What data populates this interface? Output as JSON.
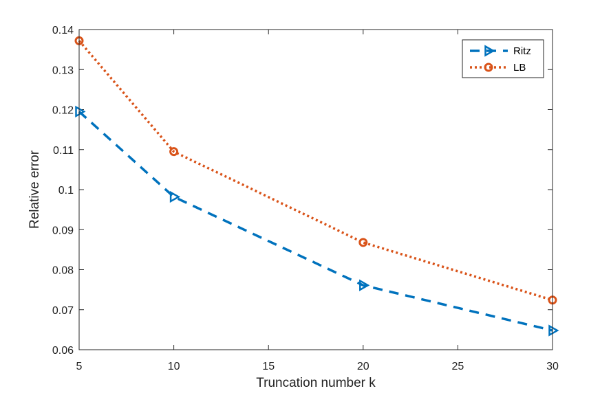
{
  "chart_data": {
    "type": "line",
    "title": "",
    "xlabel": "Truncation number k",
    "ylabel": "Relative error",
    "xlim": [
      5,
      30
    ],
    "ylim": [
      0.06,
      0.14
    ],
    "x_ticks": [
      5,
      10,
      15,
      20,
      25,
      30
    ],
    "x_tick_labels": [
      "5",
      "10",
      "15",
      "20",
      "25",
      "30"
    ],
    "y_ticks": [
      0.06,
      0.07,
      0.08,
      0.09,
      0.1,
      0.11,
      0.12,
      0.13,
      0.14
    ],
    "y_tick_labels": [
      "0.06",
      "0.07",
      "0.08",
      "0.09",
      "0.1",
      "0.11",
      "0.12",
      "0.13",
      "0.14"
    ],
    "grid": false,
    "legend_position": "top-right",
    "series": [
      {
        "name": "Ritz",
        "x": [
          5,
          10,
          20,
          30
        ],
        "values": [
          0.1195,
          0.0982,
          0.0761,
          0.0648
        ],
        "color": "#0072BD",
        "line_style": "dashed",
        "marker": "triangle-right"
      },
      {
        "name": "LB",
        "x": [
          5,
          10,
          20,
          30
        ],
        "values": [
          0.1372,
          0.1095,
          0.0868,
          0.0724
        ],
        "color": "#D95319",
        "line_style": "dotted",
        "marker": "circle"
      }
    ]
  }
}
